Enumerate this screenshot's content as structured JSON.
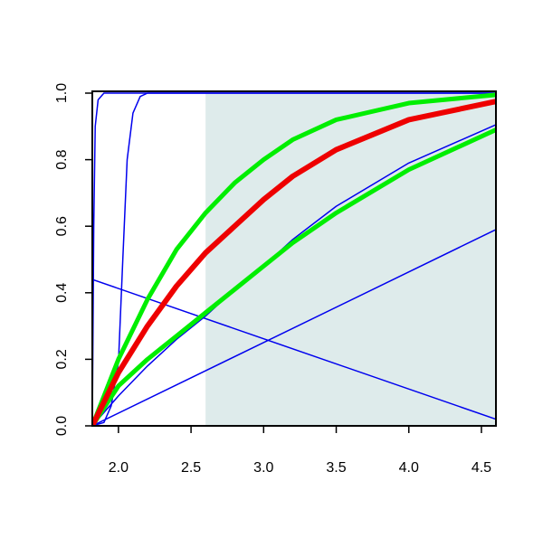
{
  "chart_data": {
    "type": "line",
    "xlim": [
      1.82,
      4.6
    ],
    "ylim": [
      0,
      1
    ],
    "xticks": [
      {
        "value": 2.0,
        "label": "2.0"
      },
      2.5,
      {
        "value": 3.0,
        "label": "3.0"
      },
      3.5,
      {
        "value": 4.0,
        "label": "4.0"
      },
      4.5
    ],
    "yticks": [
      {
        "value": 0,
        "label": "0.0"
      },
      0.2,
      0.4,
      0.6,
      0.8,
      {
        "value": 1,
        "label": "1.0"
      }
    ],
    "shade": {
      "x": [
        2.6,
        4.6
      ],
      "color": "#deebeb"
    },
    "series": [
      {
        "color": "#0000ee",
        "width": 1.5,
        "x": [
          1.82,
          1.83,
          1.84,
          1.86,
          1.9,
          4.6
        ],
        "values": [
          0,
          0.6,
          0.9,
          0.98,
          1,
          1
        ]
      },
      {
        "color": "#0000ee",
        "width": 1.5,
        "x": [
          1.82,
          1.9,
          1.95,
          2.0,
          2.03,
          2.06,
          2.1,
          2.15,
          2.2,
          4.6
        ],
        "values": [
          0,
          0.01,
          0.06,
          0.19,
          0.5,
          0.8,
          0.94,
          0.99,
          1,
          1
        ]
      },
      {
        "color": "#0000ee",
        "width": 1.5,
        "x": [
          1.82,
          4.6
        ],
        "values": [
          0.44,
          0.02
        ]
      },
      {
        "color": "#0000ee",
        "width": 1.5,
        "x": [
          1.82,
          4.6
        ],
        "values": [
          0,
          0.59
        ]
      },
      {
        "color": "#0000ee",
        "width": 1.5,
        "x": [
          1.82,
          2.0,
          2.2,
          2.4,
          2.6,
          2.8,
          3.0,
          3.2,
          3.5,
          4.0,
          4.6
        ],
        "values": [
          0,
          0.09,
          0.18,
          0.26,
          0.33,
          0.41,
          0.48,
          0.56,
          0.66,
          0.79,
          0.905
        ]
      },
      {
        "color": "#00ee00",
        "width": 5,
        "x": [
          1.82,
          2.0,
          2.2,
          2.4,
          2.6,
          2.8,
          3.0,
          3.2,
          3.5,
          4.0,
          4.6
        ],
        "values": [
          0,
          0.12,
          0.2,
          0.27,
          0.34,
          0.41,
          0.48,
          0.55,
          0.64,
          0.77,
          0.89
        ]
      },
      {
        "color": "#00ee00",
        "width": 5,
        "x": [
          1.82,
          2.0,
          2.2,
          2.4,
          2.6,
          2.8,
          3.0,
          3.2,
          3.5,
          4.0,
          4.6
        ],
        "values": [
          0,
          0.2,
          0.38,
          0.53,
          0.64,
          0.73,
          0.8,
          0.86,
          0.92,
          0.97,
          0.995
        ]
      },
      {
        "color": "#ee0000",
        "width": 6,
        "x": [
          1.82,
          2.0,
          2.2,
          2.4,
          2.6,
          2.8,
          3.0,
          3.2,
          3.5,
          4.0,
          4.6
        ],
        "values": [
          0,
          0.16,
          0.3,
          0.42,
          0.52,
          0.6,
          0.68,
          0.75,
          0.83,
          0.92,
          0.975
        ]
      }
    ]
  }
}
